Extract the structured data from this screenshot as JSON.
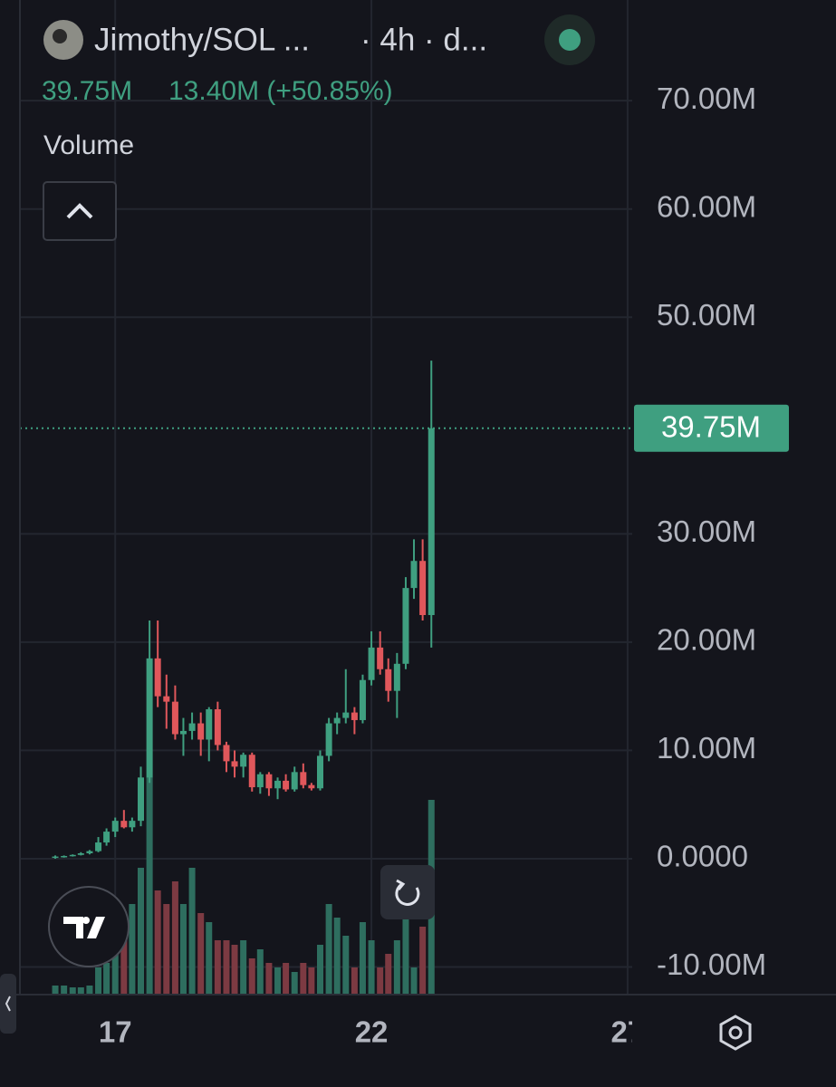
{
  "header": {
    "pair": "Jimothy/SOL ...",
    "interval": "· 4h · d...",
    "last_price": "39.75M",
    "change": "13.40M (+50.85%)",
    "indicator": "Volume"
  },
  "chart_data": {
    "type": "candlestick",
    "x": [
      15.83,
      16,
      16.17,
      16.33,
      16.5,
      16.67,
      16.83,
      17,
      17.17,
      17.33,
      17.5,
      17.67,
      17.83,
      18,
      18.17,
      18.33,
      18.5,
      18.67,
      18.83,
      19,
      19.17,
      19.33,
      19.5,
      19.67,
      19.83,
      20,
      20.17,
      20.33,
      20.5,
      20.67,
      20.83,
      21,
      21.17,
      21.33,
      21.5,
      21.67,
      21.83,
      22,
      22.17,
      22.33,
      22.5,
      22.67,
      22.83,
      23,
      23.17
    ],
    "open": [
      100000.0,
      200000.0,
      250000.0,
      350000.0,
      500000.0,
      700000.0,
      1500000.0,
      2500000.0,
      3500000.0,
      2900000.0,
      3500000.0,
      7500000.0,
      18500000.0,
      15000000.0,
      14500000.0,
      11500000.0,
      11800000.0,
      12500000.0,
      11000000.0,
      13800000.0,
      10500000.0,
      9000000.0,
      8500000.0,
      9600000.0,
      6600000.0,
      7800000.0,
      6500000.0,
      7200000.0,
      6400000.0,
      8000000.0,
      6800000.0,
      6500000.0,
      9500000.0,
      12500000.0,
      13000000.0,
      13500000.0,
      12800000.0,
      16500000.0,
      19500000.0,
      17500000.0,
      15500000.0,
      18000000.0,
      25000000.0,
      27500000.0,
      22500000.0
    ],
    "high": [
      300000.0,
      300000.0,
      400000.0,
      600000.0,
      800000.0,
      2000000.0,
      2800000.0,
      3800000.0,
      4500000.0,
      3800000.0,
      8500000.0,
      22000000.0,
      22000000.0,
      17000000.0,
      16000000.0,
      13000000.0,
      13500000.0,
      13500000.0,
      14000000.0,
      14500000.0,
      10800000.0,
      10000000.0,
      9800000.0,
      9800000.0,
      8000000.0,
      8000000.0,
      7500000.0,
      7800000.0,
      8500000.0,
      8800000.0,
      7000000.0,
      10000000.0,
      13000000.0,
      13500000.0,
      17500000.0,
      14000000.0,
      17000000.0,
      21000000.0,
      21000000.0,
      18500000.0,
      19000000.0,
      26000000.0,
      29500000.0,
      29500000.0,
      46000000.0
    ],
    "low": [
      0,
      100000.0,
      200000.0,
      300000.0,
      400000.0,
      600000.0,
      1200000.0,
      2000000.0,
      2800000.0,
      2500000.0,
      3000000.0,
      7000000.0,
      14000000.0,
      12000000.0,
      11000000.0,
      9500000.0,
      11000000.0,
      9500000.0,
      9000000.0,
      10000000.0,
      8000000.0,
      7500000.0,
      7500000.0,
      6200000.0,
      6000000.0,
      5800000.0,
      5500000.0,
      6200000.0,
      6200000.0,
      6500000.0,
      6300000.0,
      6300000.0,
      9000000.0,
      11500000.0,
      12500000.0,
      11500000.0,
      12500000.0,
      16000000.0,
      17000000.0,
      14500000.0,
      13000000.0,
      17500000.0,
      24000000.0,
      22000000.0,
      19500000.0
    ],
    "close": [
      200000.0,
      250000.0,
      350000.0,
      500000.0,
      700000.0,
      1500000.0,
      2500000.0,
      3500000.0,
      2900000.0,
      3500000.0,
      7500000.0,
      18500000.0,
      15000000.0,
      14500000.0,
      11500000.0,
      11800000.0,
      12500000.0,
      11000000.0,
      13800000.0,
      10500000.0,
      9000000.0,
      8500000.0,
      9600000.0,
      6600000.0,
      7800000.0,
      6500000.0,
      7200000.0,
      6400000.0,
      8000000.0,
      6800000.0,
      6500000.0,
      9500000.0,
      12500000.0,
      13000000.0,
      13500000.0,
      12800000.0,
      16500000.0,
      19500000.0,
      17500000.0,
      15500000.0,
      18000000.0,
      25000000.0,
      27500000.0,
      22500000.0,
      39750000.0
    ],
    "volume": [
      10,
      10,
      8,
      8,
      10,
      30,
      35,
      60,
      70,
      100,
      140,
      240,
      115,
      100,
      125,
      100,
      140,
      90,
      80,
      60,
      60,
      55,
      60,
      40,
      50,
      35,
      30,
      35,
      25,
      35,
      30,
      55,
      100,
      85,
      65,
      30,
      80,
      60,
      30,
      45,
      60,
      95,
      30,
      75,
      215
    ],
    "up_color": "#3f9f80",
    "down_color": "#e0575b",
    "volume_up_color": "#2e6e5f",
    "volume_down_color": "#7c3a42",
    "xlim": [
      15.14,
      27.09
    ],
    "xticks": [
      17,
      22,
      27
    ],
    "ylim": [
      -12550000.0,
      79300000.0
    ],
    "yticks": [
      {
        "value": -10000000.0,
        "label": "-10.00M"
      },
      {
        "value": 0,
        "label": "0.0000"
      },
      {
        "value": 10000000.0,
        "label": "10.00M"
      },
      {
        "value": 20000000.0,
        "label": "20.00M"
      },
      {
        "value": 30000000.0,
        "label": "30.00M"
      },
      {
        "value": 50000000.0,
        "label": "50.00M"
      },
      {
        "value": 60000000.0,
        "label": "60.00M"
      },
      {
        "value": 70000000.0,
        "label": "70.00M"
      }
    ],
    "grid": true
  }
}
